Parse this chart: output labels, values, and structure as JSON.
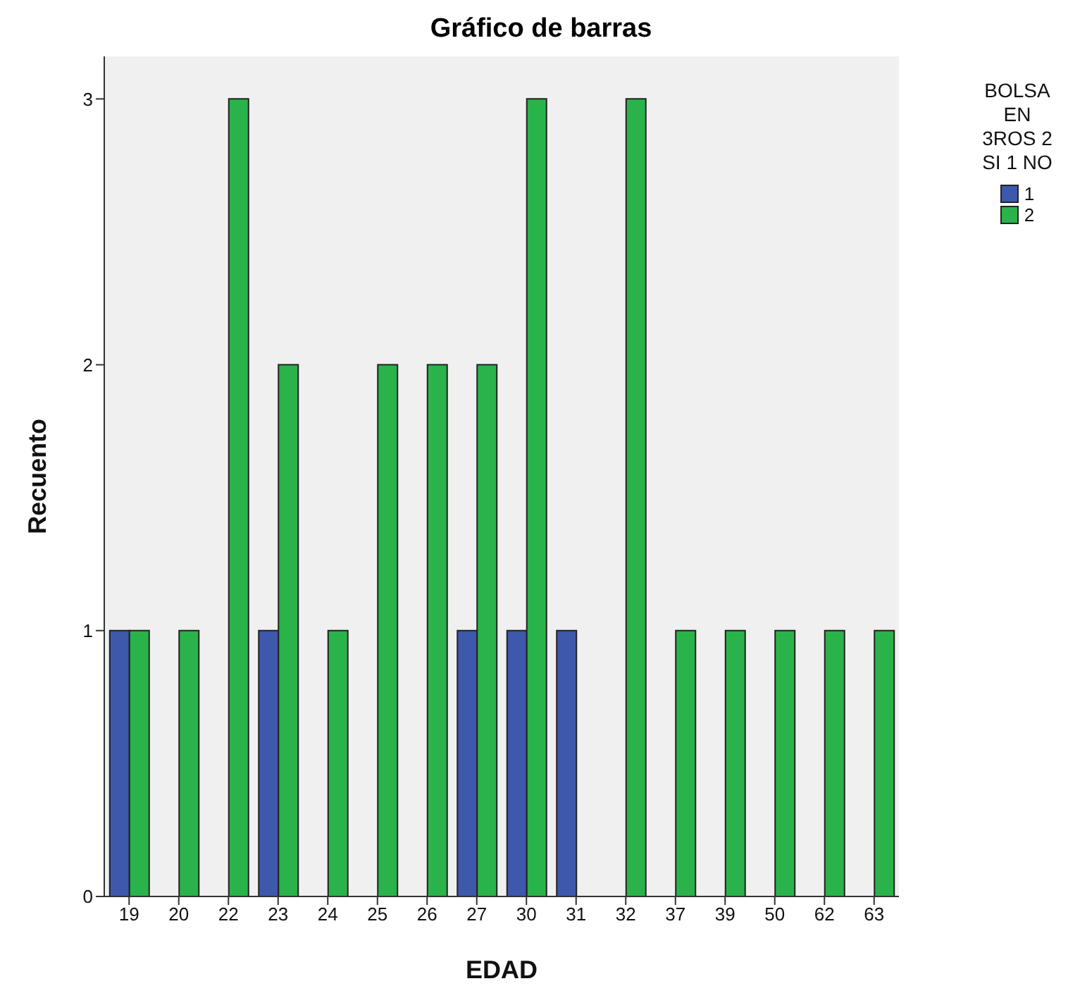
{
  "chart_data": {
    "type": "bar",
    "title": "Gráfico de barras",
    "xlabel": "EDAD",
    "ylabel": "Recuento",
    "legend_title": "BOLSA EN 3ROS 2 SI 1 NO",
    "categories": [
      "19",
      "20",
      "22",
      "23",
      "24",
      "25",
      "26",
      "27",
      "30",
      "31",
      "32",
      "37",
      "39",
      "50",
      "62",
      "63"
    ],
    "series": [
      {
        "name": "1",
        "color": "#3e58ac",
        "values": [
          1,
          0,
          0,
          1,
          0,
          0,
          0,
          1,
          1,
          1,
          0,
          0,
          0,
          0,
          0,
          0
        ]
      },
      {
        "name": "2",
        "color": "#2ab34a",
        "values": [
          1,
          1,
          3,
          2,
          1,
          2,
          2,
          2,
          3,
          0,
          3,
          1,
          1,
          1,
          1,
          1
        ]
      }
    ],
    "ylim": [
      0,
      3.16
    ],
    "yticks": [
      0,
      1,
      2,
      3
    ],
    "grid": false,
    "legend": "top right"
  }
}
